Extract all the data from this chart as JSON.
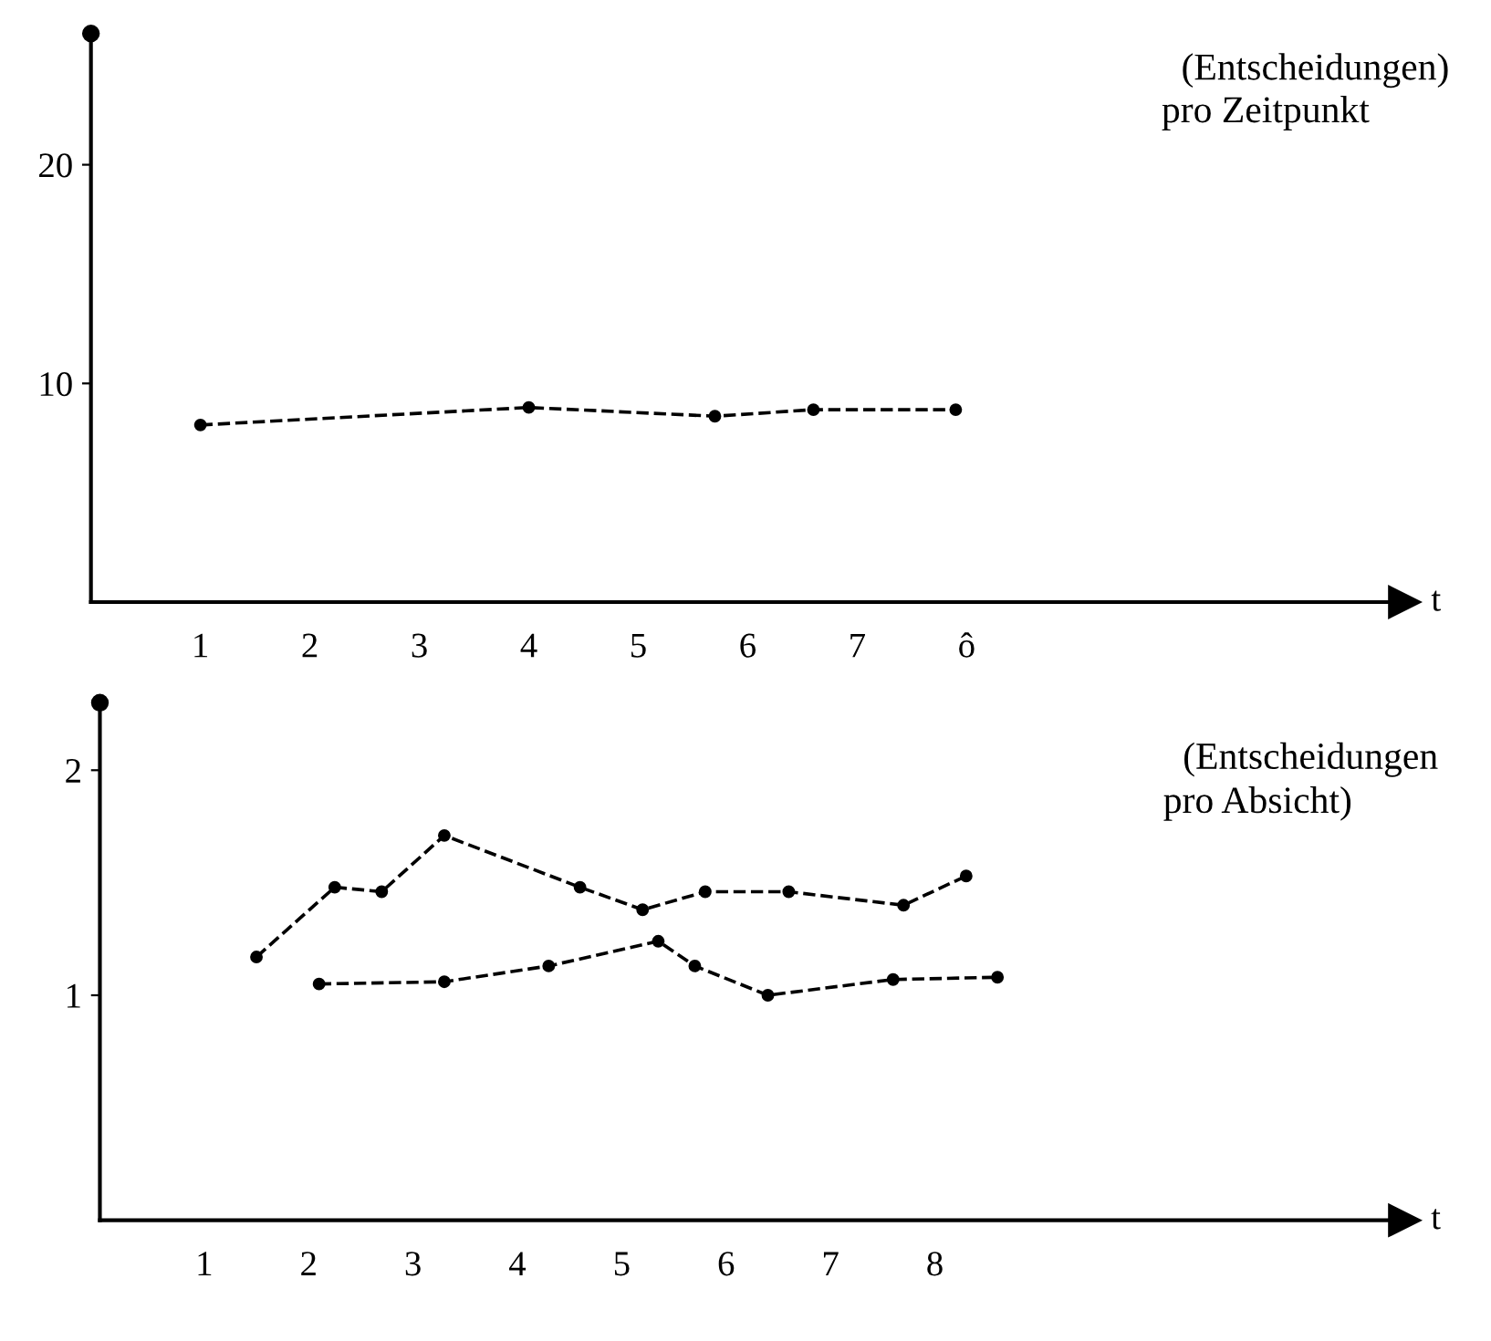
{
  "chart_data": [
    {
      "type": "line",
      "xlabel": "t",
      "annotations": [
        "(Entscheidungen)",
        "pro Zeitpunkt"
      ],
      "series": [
        {
          "color": "#000000",
          "x": [
            1,
            4,
            5.7,
            6.6,
            7.9
          ],
          "values": [
            8.1,
            8.9,
            8.5,
            8.8,
            8.8
          ]
        }
      ],
      "xlim": [
        0,
        12
      ],
      "xticks": [
        1,
        2,
        3,
        4,
        5,
        6,
        7,
        {
          "value": 8,
          "label": "ô"
        }
      ],
      "ylim": [
        0,
        26
      ],
      "yticks": [
        10,
        20
      ],
      "grid": false,
      "marker": "circle",
      "line_style": "dashed"
    },
    {
      "type": "line",
      "xlabel": "t",
      "annotations": [
        "(Entscheidungen",
        "pro Absicht)"
      ],
      "series": [
        {
          "color": "#000000",
          "x": [
            1.5,
            2.25,
            2.7,
            3.3,
            4.6,
            5.2,
            5.8,
            6.6,
            7.7,
            8.3
          ],
          "values": [
            1.17,
            1.48,
            1.46,
            1.71,
            1.48,
            1.38,
            1.46,
            1.46,
            1.4,
            1.53
          ]
        },
        {
          "color": "#000000",
          "x": [
            2.1,
            3.3,
            4.3,
            5.35,
            5.7,
            6.4,
            7.6,
            8.6
          ],
          "values": [
            1.05,
            1.06,
            1.13,
            1.24,
            1.13,
            1.0,
            1.07,
            1.08
          ]
        }
      ],
      "xlim": [
        0,
        12.5
      ],
      "xticks": [
        1,
        2,
        3,
        4,
        5,
        6,
        7,
        8
      ],
      "ylim": [
        0,
        2.3
      ],
      "yticks": [
        1,
        2
      ],
      "grid": false,
      "marker": "circle",
      "line_style": "dashed"
    }
  ]
}
